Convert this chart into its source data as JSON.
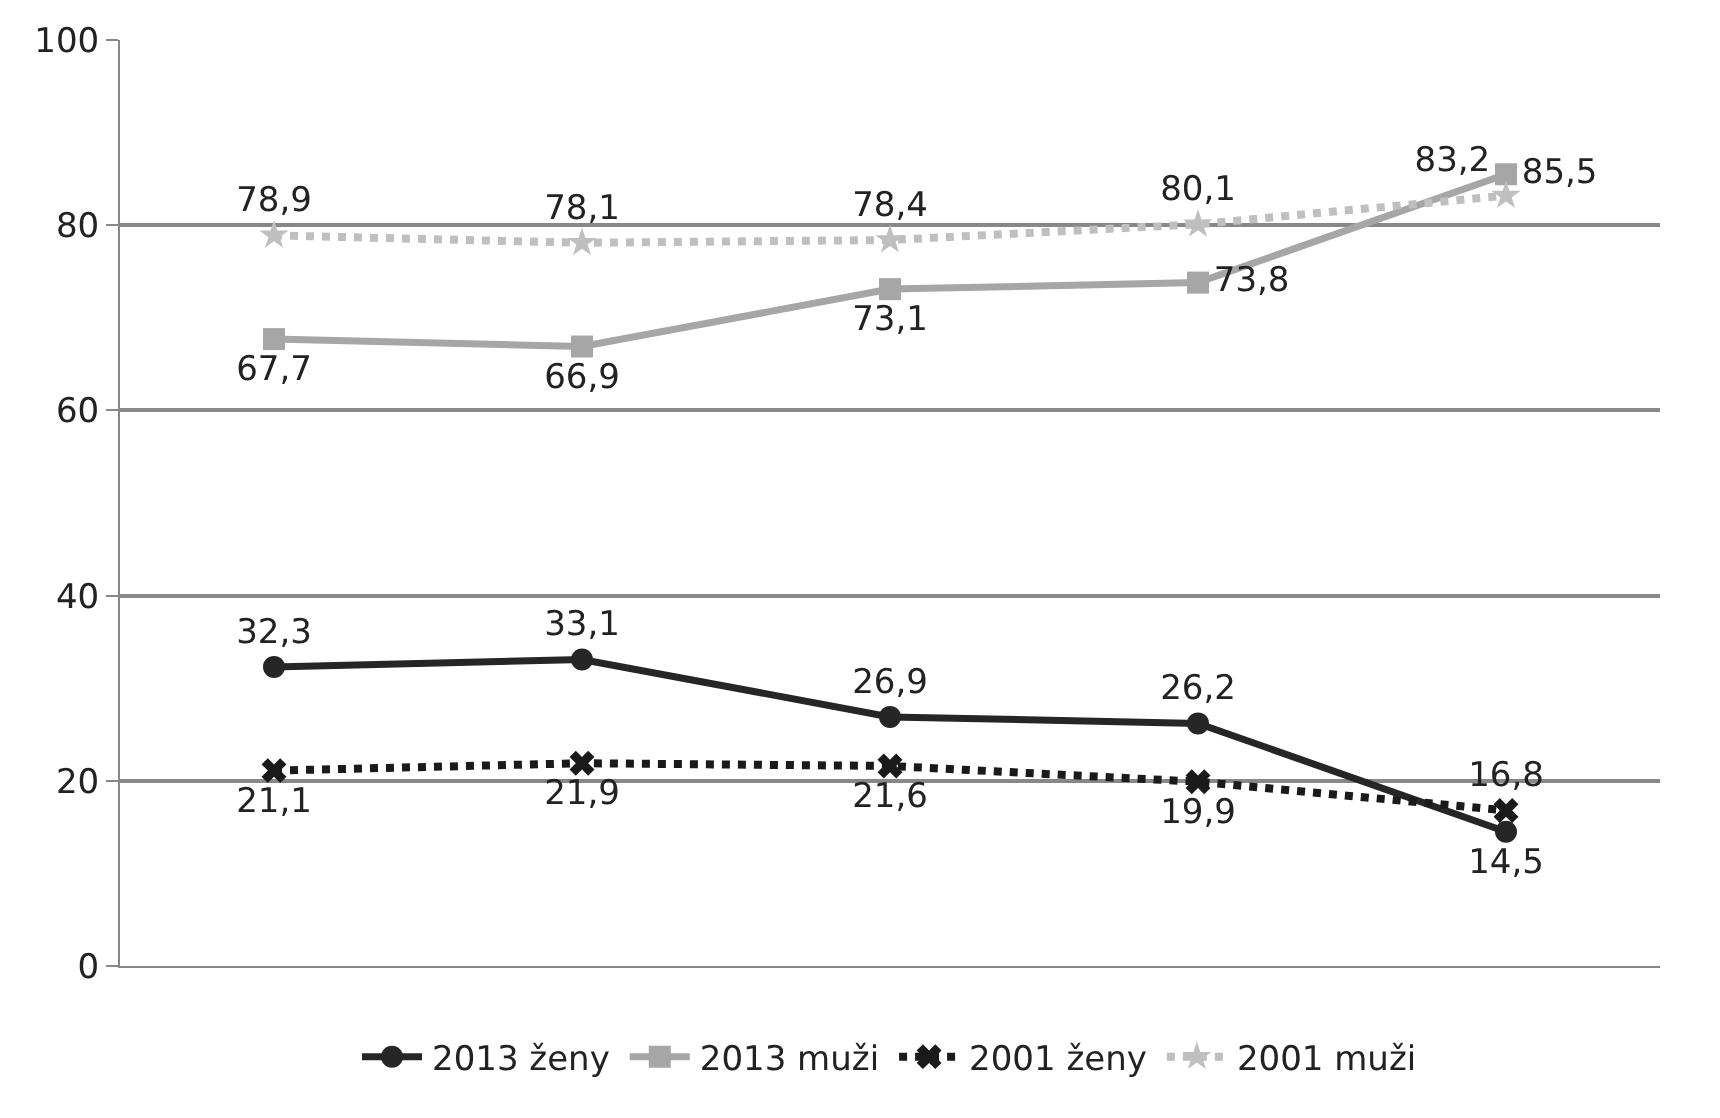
{
  "chart_data": {
    "type": "line",
    "categories": [
      null,
      null,
      null,
      null,
      null
    ],
    "ylim": [
      0,
      100
    ],
    "yticks": [
      0,
      20,
      40,
      60,
      80,
      100
    ],
    "grid": "y",
    "legend": "bottom",
    "series": [
      {
        "name": "2013 ženy",
        "color": "#262626",
        "marker": "circle",
        "line_style": "solid",
        "values": [
          32.3,
          33.1,
          26.9,
          26.2,
          14.5
        ],
        "value_labels": [
          "32,3",
          "33,1",
          "26,9",
          "26,2",
          "14,5"
        ]
      },
      {
        "name": "2013 muži",
        "color": "#a6a6a6",
        "marker": "square",
        "line_style": "solid",
        "values": [
          67.7,
          66.9,
          73.1,
          73.8,
          85.5
        ],
        "value_labels": [
          "67,7",
          "66,9",
          "73,1",
          "73,8",
          "85,5"
        ]
      },
      {
        "name": "2001 ženy",
        "color": "#1a1a1a",
        "marker": "cross",
        "line_style": "dotted",
        "values": [
          21.1,
          21.9,
          21.6,
          19.9,
          16.8
        ],
        "value_labels": [
          "21,1",
          "21,9",
          "21,6",
          "19,9",
          "16,8"
        ]
      },
      {
        "name": "2001 muži",
        "color": "#bfbfbf",
        "marker": "star",
        "line_style": "dotted",
        "values": [
          78.9,
          78.1,
          78.4,
          80.1,
          83.2
        ],
        "value_labels": [
          "78,9",
          "78,1",
          "78,4",
          "80,1",
          "83,2"
        ]
      }
    ]
  }
}
